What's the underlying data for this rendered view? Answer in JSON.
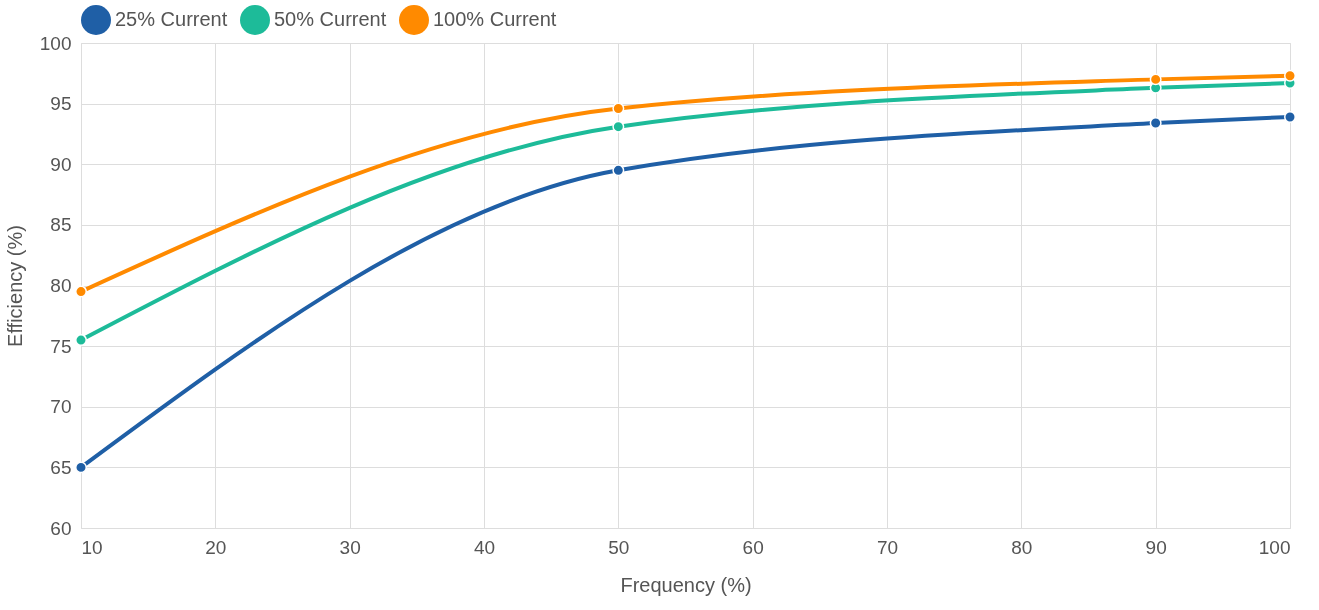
{
  "chart_data": {
    "type": "line",
    "xlabel": "Frequency (%)",
    "ylabel": "Efficiency (%)",
    "x": [
      10,
      50,
      90,
      100
    ],
    "series": [
      {
        "name": "25% Current",
        "color": "#1f5fa6",
        "values": [
          65,
          89.5,
          93.4,
          93.9
        ]
      },
      {
        "name": "50% Current",
        "color": "#1dbb99",
        "values": [
          75.5,
          93.1,
          96.3,
          96.7
        ]
      },
      {
        "name": "100% Current",
        "color": "#ff8a00",
        "values": [
          79.5,
          94.6,
          97.0,
          97.3
        ]
      }
    ],
    "xlim": [
      10,
      100
    ],
    "xticks": [
      10,
      20,
      30,
      40,
      50,
      60,
      70,
      80,
      90,
      100
    ],
    "ylim": [
      60,
      100
    ],
    "yticks": [
      60,
      65,
      70,
      75,
      80,
      85,
      90,
      95,
      100
    ],
    "grid": true,
    "legend": "top",
    "marker": "circle",
    "line_style": "solid"
  }
}
